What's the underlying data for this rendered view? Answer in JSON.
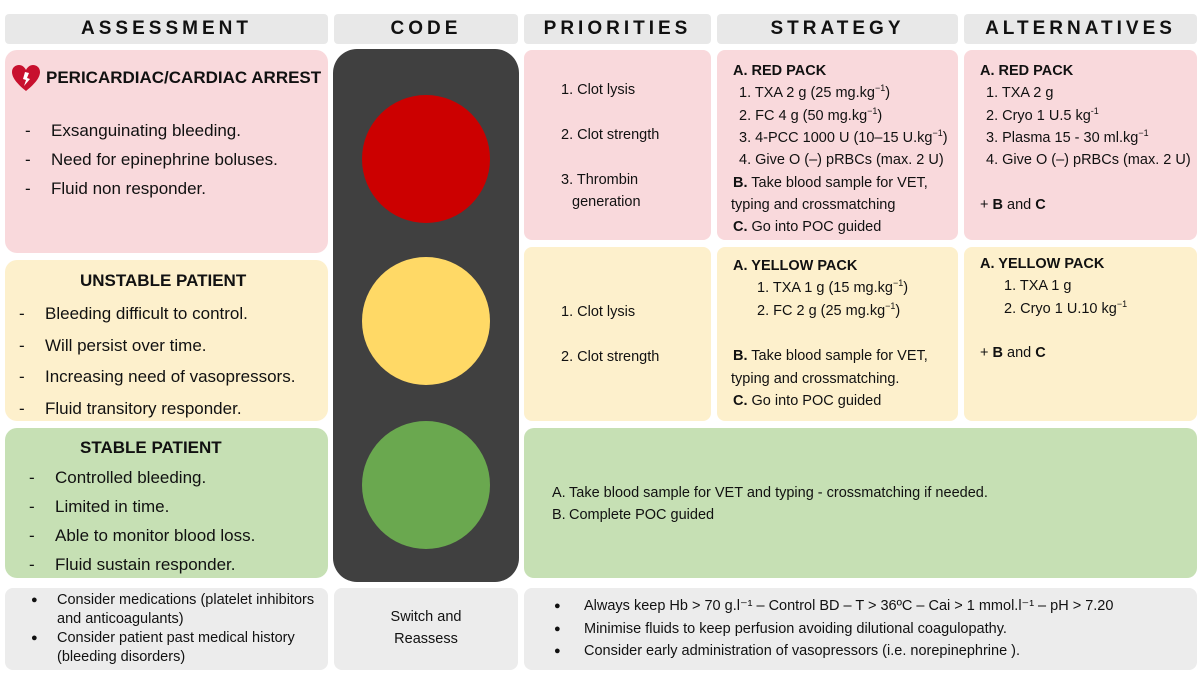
{
  "headers": {
    "assessment": "ASSESSMENT",
    "code": "CODE",
    "priorities": "PRIORITIES",
    "strategy": "STRATEGY",
    "alternatives": "ALTERNATIVES"
  },
  "assessment": {
    "red": {
      "title": "PERICARDIAC/CARDIAC ARREST",
      "items": [
        "Exsanguinating bleeding.",
        "Need for epinephrine boluses.",
        "Fluid non responder."
      ]
    },
    "yellow": {
      "title": "UNSTABLE PATIENT",
      "items": [
        "Bleeding difficult to control.",
        "Will persist over time.",
        "Increasing need of vasopressors.",
        "Fluid transitory responder."
      ]
    },
    "green": {
      "title": "STABLE PATIENT",
      "items": [
        "Controlled bleeding.",
        "Limited in time.",
        "Able to monitor blood loss.",
        "Fluid sustain responder."
      ]
    },
    "footer": [
      "Consider medications (platelet inhibitors and anticoagulants)",
      "Consider patient past medical history (bleeding disorders)"
    ]
  },
  "code": {
    "footer_line1": "Switch and",
    "footer_line2": "Reassess",
    "colors": {
      "red": "#cc0000",
      "yellow": "#ffd966",
      "green": "#6aa84f",
      "housing": "#404040"
    }
  },
  "priorities": {
    "red": [
      "1. Clot lysis",
      "2. Clot strength",
      "3. Thrombin",
      "generation"
    ],
    "yellow": [
      "1. Clot lysis",
      "2. Clot strength"
    ]
  },
  "strategy": {
    "red": {
      "pack": "A. RED PACK",
      "i1": "1. TXA 2 g (25 mg.kg",
      "i1_sup": "−1",
      "i1_end": ")",
      "i2": "2. FC 4 g (50 mg.kg",
      "i2_sup": "−1",
      "i2_end": ")",
      "i3": "3. 4-PCC 1000 U (10–15 U.kg",
      "i3_sup": "−1",
      "i3_end": ")",
      "i4": "4. Give O (–) pRBCs (max. 2 U)",
      "b_lbl": "B.",
      "b_text": " Take blood sample for VET,",
      "b_text2": "typing and crossmatching",
      "c_lbl": "C.",
      "c_text": " Go into POC guided"
    },
    "yellow": {
      "pack": "A. YELLOW PACK",
      "i1": "1. TXA 1 g (15 mg.kg",
      "i1_sup": "−1",
      "i1_end": ")",
      "i2": "2. FC 2 g (25 mg.kg",
      "i2_sup": "−1",
      "i2_end": ")",
      "b_lbl": "B.",
      "b_text": " Take blood sample for VET,",
      "b_text2": "typing and crossmatching.",
      "c_lbl": "C.",
      "c_text": " Go into POC guided"
    }
  },
  "alternatives": {
    "red": {
      "pack": "A. RED PACK",
      "i1": "1. TXA 2 g",
      "i2": "2. Cryo 1 U.5 kg",
      "i2_sup": "-1",
      "i3": "3. Plasma 15 - 30 ml.kg",
      "i3_sup": "−1",
      "i4": "4. Give O (–) pRBCs (max. 2 U)",
      "plus": "+ ",
      "b": "B",
      "and": " and ",
      "c": "C"
    },
    "yellow": {
      "pack": "A. YELLOW PACK",
      "i1": "1. TXA 1 g",
      "i2": "2. Cryo 1 U.10 kg",
      "i2_sup": "−1",
      "plus": "+ ",
      "b": "B",
      "and": " and ",
      "c": "C"
    }
  },
  "green_plan": [
    {
      "label": "A.",
      "text": "Take blood sample for VET and typing - crossmatching if needed."
    },
    {
      "label": "B.",
      "text": "Complete POC guided"
    }
  ],
  "general_footer": [
    "Always keep Hb > 70 g.l⁻¹ – Control BD – T > 36ºC – Cai > 1 mmol.l⁻¹ – pH > 7.20",
    "Minimise fluids to keep perfusion avoiding dilutional coagulopathy.",
    "Consider early administration of vasopressors (i.e. norepinephrine )."
  ]
}
